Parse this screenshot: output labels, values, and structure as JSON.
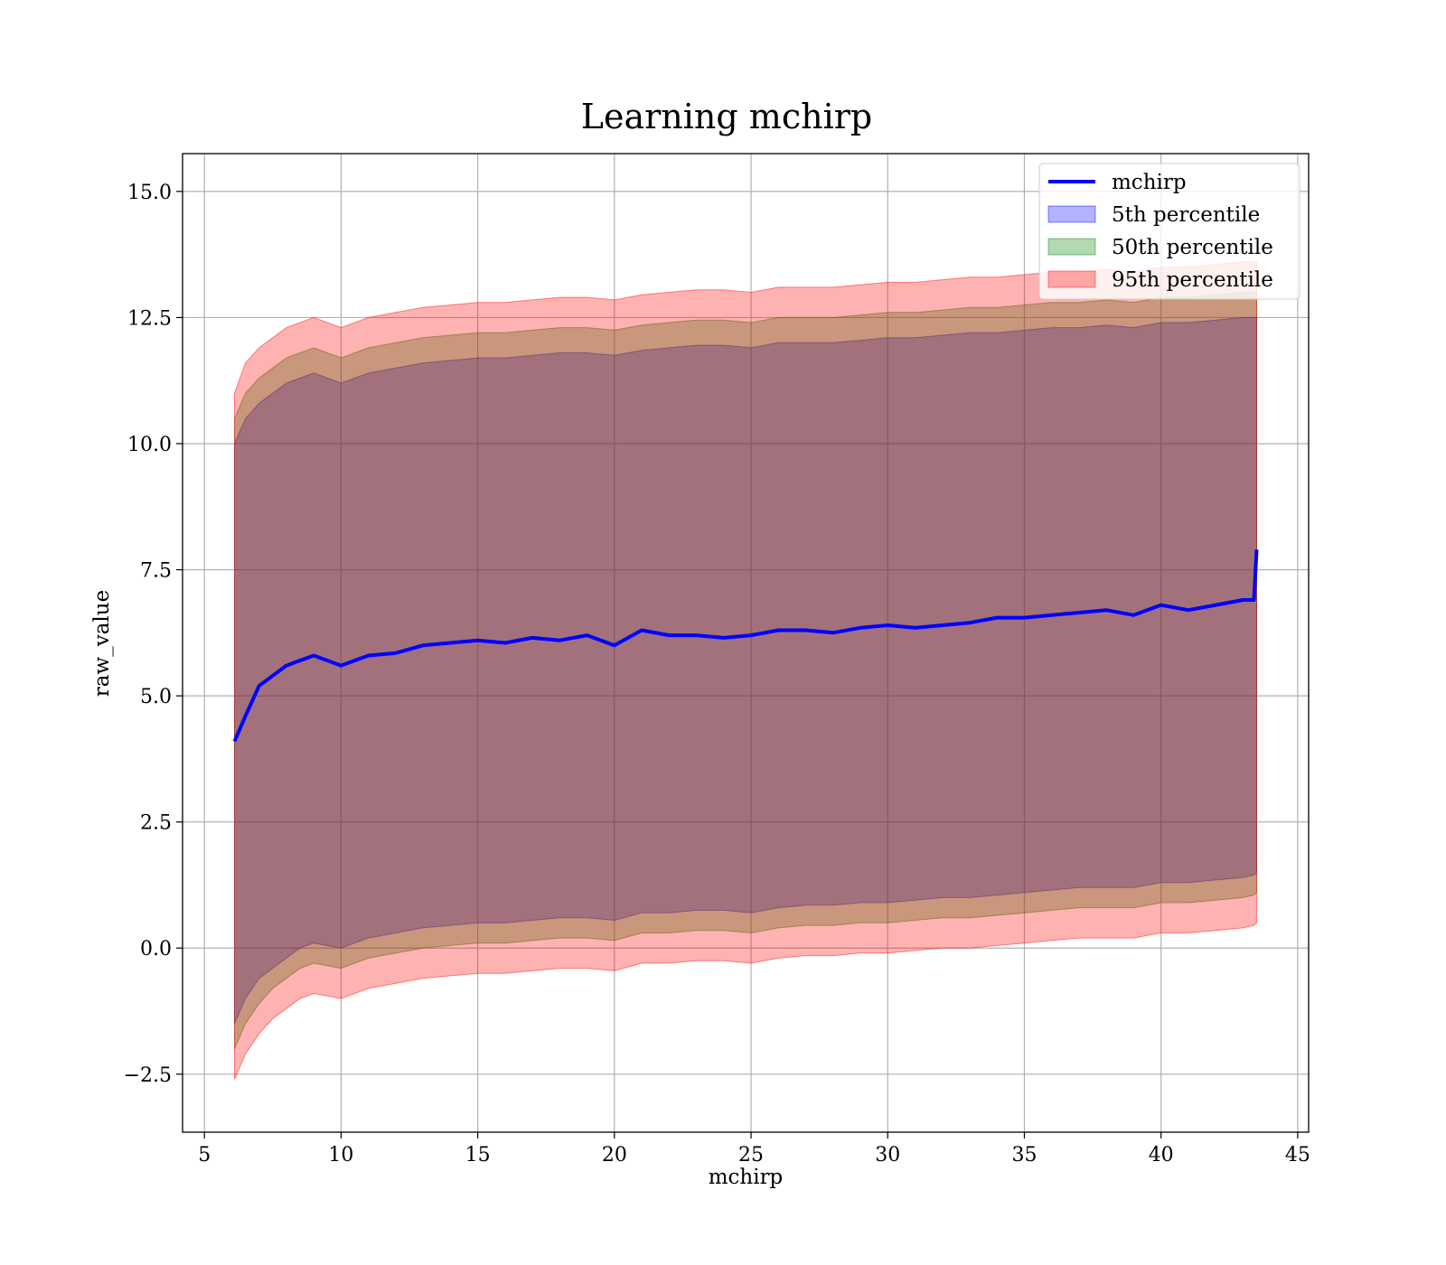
{
  "chart_data": {
    "type": "line",
    "title": "Learning mchirp",
    "xlabel": "mchirp",
    "ylabel": "raw_value",
    "xlim": [
      4.2,
      45.4
    ],
    "ylim": [
      -3.65,
      15.75
    ],
    "x_ticks": [
      5,
      10,
      15,
      20,
      25,
      30,
      35,
      40,
      45
    ],
    "y_ticks": [
      -2.5,
      0.0,
      2.5,
      5.0,
      7.5,
      10.0,
      12.5,
      15.0
    ],
    "x_tick_labels": [
      "5",
      "10",
      "15",
      "20",
      "25",
      "30",
      "35",
      "40",
      "45"
    ],
    "y_tick_labels": [
      "−2.5",
      "0.0",
      "2.5",
      "5.0",
      "7.5",
      "10.0",
      "12.5",
      "15.0"
    ],
    "grid": true,
    "legend_position": "top-right",
    "x": [
      6.1,
      6.5,
      7.0,
      7.5,
      8.0,
      8.5,
      9.0,
      10.0,
      11.0,
      12.0,
      13.0,
      14.0,
      15.0,
      16.0,
      17.0,
      18.0,
      19.0,
      20.0,
      21.0,
      22.0,
      23.0,
      24.0,
      25.0,
      26.0,
      27.0,
      28.0,
      29.0,
      30.0,
      31.0,
      32.0,
      33.0,
      34.0,
      35.0,
      36.0,
      37.0,
      38.0,
      39.0,
      40.0,
      41.0,
      42.0,
      43.0,
      43.4,
      43.5
    ],
    "series": [
      {
        "name": "mchirp",
        "kind": "line",
        "color": "#0000ff",
        "values": [
          4.1,
          4.6,
          5.2,
          5.4,
          5.6,
          5.7,
          5.8,
          5.6,
          5.8,
          5.85,
          6.0,
          6.05,
          6.1,
          6.05,
          6.15,
          6.1,
          6.2,
          6.0,
          6.3,
          6.2,
          6.2,
          6.15,
          6.2,
          6.3,
          6.3,
          6.25,
          6.35,
          6.4,
          6.35,
          6.4,
          6.45,
          6.55,
          6.55,
          6.6,
          6.65,
          6.7,
          6.6,
          6.8,
          6.7,
          6.8,
          6.9,
          6.9,
          7.9
        ]
      },
      {
        "name": "5th percentile",
        "kind": "band",
        "color": "#0000ff",
        "opacity": 0.3,
        "lower": [
          -1.5,
          -1.0,
          -0.6,
          -0.4,
          -0.2,
          0.0,
          0.1,
          0.0,
          0.2,
          0.3,
          0.4,
          0.45,
          0.5,
          0.5,
          0.55,
          0.6,
          0.6,
          0.55,
          0.7,
          0.7,
          0.75,
          0.75,
          0.7,
          0.8,
          0.85,
          0.85,
          0.9,
          0.9,
          0.95,
          1.0,
          1.0,
          1.05,
          1.1,
          1.15,
          1.2,
          1.2,
          1.2,
          1.3,
          1.3,
          1.35,
          1.4,
          1.45,
          1.5
        ],
        "upper": [
          10.0,
          10.5,
          10.8,
          11.0,
          11.2,
          11.3,
          11.4,
          11.2,
          11.4,
          11.5,
          11.6,
          11.65,
          11.7,
          11.7,
          11.75,
          11.8,
          11.8,
          11.75,
          11.85,
          11.9,
          11.95,
          11.95,
          11.9,
          12.0,
          12.0,
          12.0,
          12.05,
          12.1,
          12.1,
          12.15,
          12.2,
          12.2,
          12.25,
          12.3,
          12.3,
          12.35,
          12.3,
          12.4,
          12.4,
          12.45,
          12.5,
          12.5,
          12.5
        ]
      },
      {
        "name": "50th percentile",
        "kind": "band",
        "color": "#008000",
        "opacity": 0.3,
        "lower": [
          -2.0,
          -1.5,
          -1.1,
          -0.8,
          -0.6,
          -0.4,
          -0.3,
          -0.4,
          -0.2,
          -0.1,
          0.0,
          0.05,
          0.1,
          0.1,
          0.15,
          0.2,
          0.2,
          0.15,
          0.3,
          0.3,
          0.35,
          0.35,
          0.3,
          0.4,
          0.45,
          0.45,
          0.5,
          0.5,
          0.55,
          0.6,
          0.6,
          0.65,
          0.7,
          0.75,
          0.8,
          0.8,
          0.8,
          0.9,
          0.9,
          0.95,
          1.0,
          1.05,
          1.1
        ],
        "upper": [
          10.5,
          11.0,
          11.3,
          11.5,
          11.7,
          11.8,
          11.9,
          11.7,
          11.9,
          12.0,
          12.1,
          12.15,
          12.2,
          12.2,
          12.25,
          12.3,
          12.3,
          12.25,
          12.35,
          12.4,
          12.45,
          12.45,
          12.4,
          12.5,
          12.5,
          12.5,
          12.55,
          12.6,
          12.6,
          12.65,
          12.7,
          12.7,
          12.75,
          12.8,
          12.8,
          12.85,
          12.8,
          12.9,
          12.9,
          12.95,
          13.0,
          13.0,
          13.0
        ]
      },
      {
        "name": "95th percentile",
        "kind": "band",
        "color": "#ff0000",
        "opacity": 0.3,
        "lower": [
          -2.6,
          -2.1,
          -1.7,
          -1.4,
          -1.2,
          -1.0,
          -0.9,
          -1.0,
          -0.8,
          -0.7,
          -0.6,
          -0.55,
          -0.5,
          -0.5,
          -0.45,
          -0.4,
          -0.4,
          -0.45,
          -0.3,
          -0.3,
          -0.25,
          -0.25,
          -0.3,
          -0.2,
          -0.15,
          -0.15,
          -0.1,
          -0.1,
          -0.05,
          0.0,
          0.0,
          0.05,
          0.1,
          0.15,
          0.2,
          0.2,
          0.2,
          0.3,
          0.3,
          0.35,
          0.4,
          0.45,
          0.5
        ],
        "upper": [
          11.0,
          11.6,
          11.9,
          12.1,
          12.3,
          12.4,
          12.5,
          12.3,
          12.5,
          12.6,
          12.7,
          12.75,
          12.8,
          12.8,
          12.85,
          12.9,
          12.9,
          12.85,
          12.95,
          13.0,
          13.05,
          13.05,
          13.0,
          13.1,
          13.1,
          13.1,
          13.15,
          13.2,
          13.2,
          13.25,
          13.3,
          13.3,
          13.35,
          13.4,
          13.4,
          13.45,
          13.4,
          13.5,
          13.5,
          13.55,
          13.6,
          13.6,
          13.6
        ]
      }
    ]
  }
}
